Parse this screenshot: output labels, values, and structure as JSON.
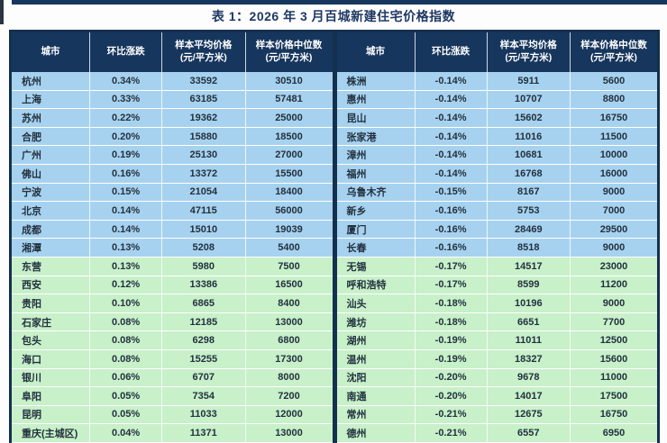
{
  "page": {
    "title": "表 1：2026 年 3 月百城新建住宅价格指数"
  },
  "table": {
    "columns": [
      {
        "key": "city",
        "label": "城市"
      },
      {
        "key": "change",
        "label": "环比涨跌"
      },
      {
        "key": "avg",
        "label": "样本平均价格\n(元/平方米)"
      },
      {
        "key": "median",
        "label": "样本价格中位数\n(元/平方米)"
      }
    ],
    "colors": {
      "header_bg": "#17365d",
      "header_text": "#ffffff",
      "title_text": "#1f3864",
      "border": "#14304f",
      "rise_row_bg": "#a7d2ef",
      "fall_row_bg": "#c8f0c9",
      "text": "#22313f"
    },
    "left_rows": [
      {
        "city": "杭州",
        "change": "0.34%",
        "avg": "33592",
        "median": "30510",
        "tone": "blue"
      },
      {
        "city": "上海",
        "change": "0.33%",
        "avg": "63185",
        "median": "57481",
        "tone": "blue"
      },
      {
        "city": "苏州",
        "change": "0.22%",
        "avg": "19362",
        "median": "25000",
        "tone": "blue"
      },
      {
        "city": "合肥",
        "change": "0.20%",
        "avg": "15880",
        "median": "18500",
        "tone": "blue"
      },
      {
        "city": "广州",
        "change": "0.19%",
        "avg": "25130",
        "median": "27000",
        "tone": "blue"
      },
      {
        "city": "佛山",
        "change": "0.16%",
        "avg": "13372",
        "median": "15500",
        "tone": "blue"
      },
      {
        "city": "宁波",
        "change": "0.15%",
        "avg": "21054",
        "median": "18400",
        "tone": "blue"
      },
      {
        "city": "北京",
        "change": "0.14%",
        "avg": "47115",
        "median": "56000",
        "tone": "blue"
      },
      {
        "city": "成都",
        "change": "0.14%",
        "avg": "15010",
        "median": "19039",
        "tone": "blue"
      },
      {
        "city": "湘潭",
        "change": "0.13%",
        "avg": "5208",
        "median": "5400",
        "tone": "blue"
      },
      {
        "city": "东营",
        "change": "0.13%",
        "avg": "5980",
        "median": "7500",
        "tone": "green"
      },
      {
        "city": "西安",
        "change": "0.12%",
        "avg": "13386",
        "median": "16500",
        "tone": "green"
      },
      {
        "city": "贵阳",
        "change": "0.10%",
        "avg": "6865",
        "median": "8400",
        "tone": "green"
      },
      {
        "city": "石家庄",
        "change": "0.08%",
        "avg": "12185",
        "median": "13000",
        "tone": "green"
      },
      {
        "city": "包头",
        "change": "0.08%",
        "avg": "6298",
        "median": "6800",
        "tone": "green"
      },
      {
        "city": "海口",
        "change": "0.08%",
        "avg": "15255",
        "median": "17300",
        "tone": "green"
      },
      {
        "city": "银川",
        "change": "0.06%",
        "avg": "6707",
        "median": "8000",
        "tone": "green"
      },
      {
        "city": "阜阳",
        "change": "0.05%",
        "avg": "7354",
        "median": "7200",
        "tone": "green"
      },
      {
        "city": "昆明",
        "change": "0.05%",
        "avg": "11033",
        "median": "12000",
        "tone": "green"
      },
      {
        "city": "重庆(主城区)",
        "change": "0.04%",
        "avg": "11371",
        "median": "13000",
        "tone": "green"
      }
    ],
    "right_rows": [
      {
        "city": "株洲",
        "change": "-0.14%",
        "avg": "5911",
        "median": "5600",
        "tone": "blue"
      },
      {
        "city": "惠州",
        "change": "-0.14%",
        "avg": "10707",
        "median": "8800",
        "tone": "blue"
      },
      {
        "city": "昆山",
        "change": "-0.14%",
        "avg": "15602",
        "median": "16750",
        "tone": "blue"
      },
      {
        "city": "张家港",
        "change": "-0.14%",
        "avg": "11016",
        "median": "11500",
        "tone": "blue"
      },
      {
        "city": "漳州",
        "change": "-0.14%",
        "avg": "10681",
        "median": "10000",
        "tone": "blue"
      },
      {
        "city": "福州",
        "change": "-0.14%",
        "avg": "16768",
        "median": "16000",
        "tone": "blue"
      },
      {
        "city": "乌鲁木齐",
        "change": "-0.15%",
        "avg": "8167",
        "median": "9000",
        "tone": "blue"
      },
      {
        "city": "新乡",
        "change": "-0.16%",
        "avg": "5753",
        "median": "7000",
        "tone": "blue"
      },
      {
        "city": "厦门",
        "change": "-0.16%",
        "avg": "28469",
        "median": "29500",
        "tone": "blue"
      },
      {
        "city": "长春",
        "change": "-0.16%",
        "avg": "8518",
        "median": "9000",
        "tone": "blue"
      },
      {
        "city": "无锡",
        "change": "-0.17%",
        "avg": "14517",
        "median": "23000",
        "tone": "green"
      },
      {
        "city": "呼和浩特",
        "change": "-0.17%",
        "avg": "8599",
        "median": "11200",
        "tone": "green"
      },
      {
        "city": "汕头",
        "change": "-0.18%",
        "avg": "10196",
        "median": "9000",
        "tone": "green"
      },
      {
        "city": "潍坊",
        "change": "-0.18%",
        "avg": "6651",
        "median": "7700",
        "tone": "green"
      },
      {
        "city": "湖州",
        "change": "-0.19%",
        "avg": "11011",
        "median": "12500",
        "tone": "green"
      },
      {
        "city": "温州",
        "change": "-0.19%",
        "avg": "18327",
        "median": "15600",
        "tone": "green"
      },
      {
        "city": "沈阳",
        "change": "-0.20%",
        "avg": "9678",
        "median": "11000",
        "tone": "green"
      },
      {
        "city": "南通",
        "change": "-0.20%",
        "avg": "14017",
        "median": "17500",
        "tone": "green"
      },
      {
        "city": "常州",
        "change": "-0.21%",
        "avg": "12675",
        "median": "16750",
        "tone": "green"
      },
      {
        "city": "德州",
        "change": "-0.21%",
        "avg": "6557",
        "median": "6950",
        "tone": "green"
      }
    ]
  }
}
